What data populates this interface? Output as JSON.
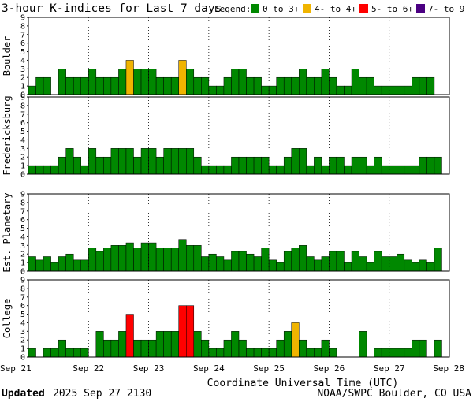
{
  "chart_data": {
    "type": "bar",
    "title": "3-hour K-indices for Last 7 days",
    "legend": {
      "label": "Legend:",
      "items": [
        {
          "label": "0 to 3+",
          "color": "#008800"
        },
        {
          "label": "4- to 4+",
          "color": "#f0b400"
        },
        {
          "label": "5- to 6+",
          "color": "#ff0000"
        },
        {
          "label": "7- to 9",
          "color": "#4b0082"
        }
      ]
    },
    "xlabel": "Coordinate Universal Time (UTC)",
    "x_ticks": [
      "Sep 21",
      "Sep 22",
      "Sep 23",
      "Sep 24",
      "Sep 25",
      "Sep 26",
      "Sep 27",
      "Sep 28"
    ],
    "y_ticks": [
      "0",
      "1",
      "2",
      "3",
      "4",
      "5",
      "6",
      "7",
      "8",
      "9"
    ],
    "ylim": [
      0,
      9
    ],
    "bins_per_day": 8,
    "series": [
      {
        "name": "Boulder",
        "values": [
          1,
          2,
          2,
          0,
          3,
          2,
          2,
          2,
          3,
          2,
          2,
          2,
          3,
          4,
          3,
          3,
          3,
          2,
          2,
          2,
          4,
          3,
          2,
          2,
          1,
          1,
          2,
          3,
          3,
          2,
          2,
          1,
          1,
          2,
          2,
          2,
          3,
          2,
          2,
          3,
          2,
          1,
          1,
          3,
          2,
          2,
          1,
          1,
          1,
          1,
          1,
          2,
          2,
          2,
          0
        ]
      },
      {
        "name": "Fredericksburg",
        "values": [
          1,
          1,
          1,
          1,
          2,
          3,
          2,
          1,
          3,
          2,
          2,
          3,
          3,
          3,
          2,
          3,
          3,
          2,
          3,
          3,
          3,
          3,
          2,
          1,
          1,
          1,
          1,
          2,
          2,
          2,
          2,
          2,
          1,
          1,
          2,
          3,
          3,
          1,
          2,
          1,
          2,
          2,
          1,
          2,
          2,
          1,
          2,
          1,
          1,
          1,
          1,
          1,
          2,
          2,
          2,
          0
        ]
      },
      {
        "name": "Est. Planetary",
        "values": [
          1.7,
          1.3,
          1.7,
          1,
          1.7,
          2,
          1.3,
          1.3,
          2.7,
          2.3,
          2.7,
          3,
          3,
          3.3,
          2.7,
          3.3,
          3.3,
          2.7,
          2.7,
          2.7,
          3.7,
          3,
          3,
          1.7,
          2,
          1.7,
          1.3,
          2.3,
          2.3,
          2,
          1.7,
          2.7,
          1.3,
          1,
          2.3,
          2.7,
          3,
          1.7,
          1.3,
          1.7,
          2.3,
          2.3,
          1,
          2.3,
          1.7,
          1,
          2.3,
          1.7,
          1.7,
          2,
          1.3,
          1,
          1.3,
          1,
          2.7
        ]
      },
      {
        "name": "College",
        "values": [
          1,
          0,
          1,
          1,
          2,
          1,
          1,
          1,
          0,
          3,
          2,
          2,
          3,
          5,
          2,
          2,
          2,
          3,
          3,
          3,
          6,
          6,
          3,
          2,
          1,
          1,
          2,
          3,
          2,
          1,
          1,
          1,
          1,
          2,
          3,
          4,
          2,
          1,
          1,
          2,
          1,
          0,
          0,
          0,
          3,
          0,
          1,
          1,
          1,
          1,
          1,
          2,
          2,
          0,
          2
        ]
      }
    ]
  },
  "footer": {
    "updated_label": "Updated",
    "updated_value": "2025 Sep 27 2130",
    "source": "NOAA/SWPC Boulder, CO USA"
  }
}
